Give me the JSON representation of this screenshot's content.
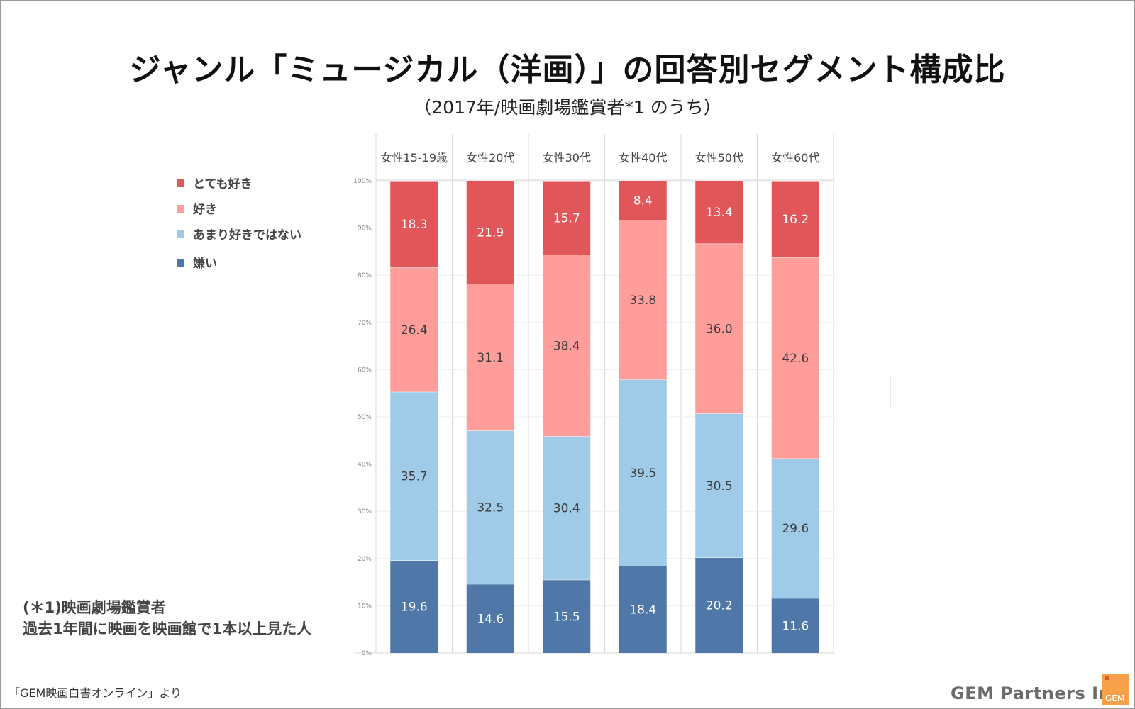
{
  "title": "ジャンル「ミュージカル（洋画）」の回答別セグメント構成比",
  "subtitle": "（2017年/映画劇場鑑賞者*1 のうち）",
  "note": {
    "line1": "(＊1)映画劇場鑑賞者",
    "line2": "過去1年間に映画を映画館で1本以上見た人"
  },
  "source": "「GEM映画白書オンライン」より",
  "brand": "GEM Partners Inc.",
  "brand_logo_text": "GEM",
  "chart_data": {
    "type": "bar",
    "stacked": true,
    "categories": [
      "女性15-19歳",
      "女性20代",
      "女性30代",
      "女性40代",
      "女性50代",
      "女性60代"
    ],
    "series": [
      {
        "name": "嫌い",
        "color": "#4f78a8",
        "values": [
          19.6,
          14.6,
          15.5,
          18.4,
          20.2,
          11.6
        ]
      },
      {
        "name": "あまり好きではない",
        "color": "#a0cbe8",
        "values": [
          35.7,
          32.5,
          30.4,
          39.5,
          30.5,
          29.6
        ]
      },
      {
        "name": "好き",
        "color": "#ff9d9a",
        "values": [
          26.4,
          31.1,
          38.4,
          33.8,
          36.0,
          42.6
        ]
      },
      {
        "name": "とても好き",
        "color": "#e15759",
        "values": [
          18.3,
          21.9,
          15.7,
          8.4,
          13.4,
          16.2
        ]
      }
    ],
    "legend_order": [
      "とても好き",
      "好き",
      "あまり好きではない",
      "嫌い"
    ],
    "ylim": [
      0,
      100
    ],
    "yticks": [
      "0%",
      "10%",
      "20%",
      "30%",
      "40%",
      "50%",
      "60%",
      "70%",
      "80%",
      "90%",
      "100%"
    ],
    "grid": true,
    "legend_position": "left"
  }
}
